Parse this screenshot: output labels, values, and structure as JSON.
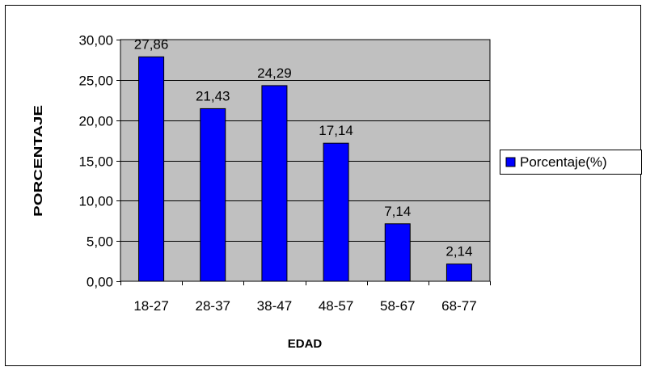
{
  "chart_data": {
    "type": "bar",
    "title": "",
    "xlabel": "EDAD",
    "ylabel": "PORCENTAJE",
    "categories": [
      "18-27",
      "28-37",
      "38-47",
      "48-57",
      "58-67",
      "68-77"
    ],
    "series": [
      {
        "name": "Porcentaje(%)",
        "values": [
          27.86,
          21.43,
          24.29,
          17.14,
          7.14,
          2.14
        ]
      }
    ],
    "value_labels": [
      "27,86",
      "21,43",
      "24,29",
      "17,14",
      "7,14",
      "2,14"
    ],
    "y_ticks": [
      "0,00",
      "5,00",
      "10,00",
      "15,00",
      "20,00",
      "25,00",
      "30,00"
    ],
    "ylim": [
      0,
      30
    ],
    "y_step": 5,
    "grid": true,
    "legend_position": "right",
    "colors": {
      "bar_fill": "#0000ff",
      "bar_stroke": "#000000",
      "plot_background": "#c0c0c0",
      "grid": "#000000",
      "frame": "#000000"
    }
  }
}
